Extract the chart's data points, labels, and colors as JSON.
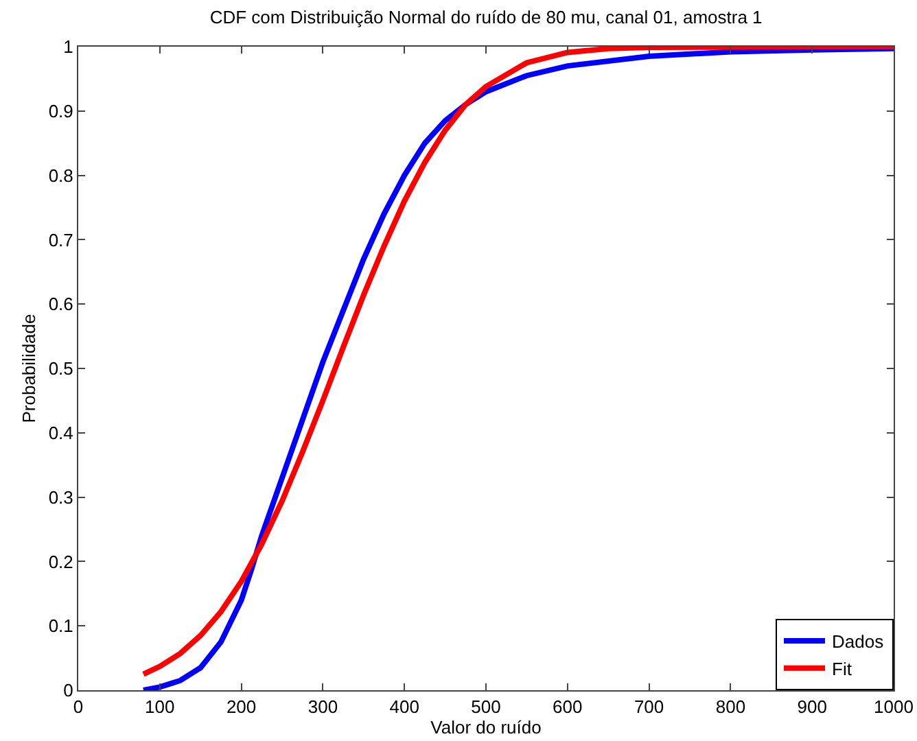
{
  "chart_data": {
    "type": "line",
    "title": "CDF com Distribuição Normal do ruído de 80 mu, canal 01, amostra 1",
    "xlabel": "Valor do ruído",
    "ylabel": "Probabilidade",
    "xlim": [
      0,
      1000
    ],
    "xticks": [
      0,
      100,
      200,
      300,
      400,
      500,
      600,
      700,
      800,
      900,
      1000
    ],
    "ylim": [
      0,
      1
    ],
    "yticks": [
      0,
      0.1,
      0.2,
      0.3,
      0.4,
      0.5,
      0.6,
      0.7,
      0.8,
      0.9,
      1
    ],
    "grid": false,
    "legend": "bottom right",
    "marker": "none",
    "line_style": "solid",
    "series": [
      {
        "name": "Dados",
        "color": "#0000ff",
        "x": [
          80,
          100,
          125,
          150,
          175,
          200,
          213,
          225,
          250,
          275,
          300,
          325,
          350,
          375,
          400,
          425,
          450,
          475,
          500,
          550,
          600,
          700,
          800,
          900,
          1000
        ],
        "values": [
          0,
          0.005,
          0.015,
          0.035,
          0.075,
          0.14,
          0.19,
          0.24,
          0.33,
          0.42,
          0.51,
          0.59,
          0.67,
          0.74,
          0.8,
          0.85,
          0.885,
          0.91,
          0.93,
          0.955,
          0.97,
          0.985,
          0.992,
          0.995,
          0.997
        ]
      },
      {
        "name": "Fit",
        "color": "#ff0000",
        "x": [
          80,
          100,
          125,
          150,
          175,
          200,
          225,
          250,
          275,
          300,
          325,
          350,
          375,
          400,
          425,
          450,
          475,
          500,
          550,
          600,
          650,
          700,
          1000
        ],
        "values": [
          0.025,
          0.037,
          0.057,
          0.085,
          0.122,
          0.169,
          0.227,
          0.294,
          0.37,
          0.45,
          0.533,
          0.614,
          0.69,
          0.76,
          0.82,
          0.87,
          0.91,
          0.938,
          0.975,
          0.991,
          0.997,
          0.999,
          1
        ]
      }
    ]
  }
}
